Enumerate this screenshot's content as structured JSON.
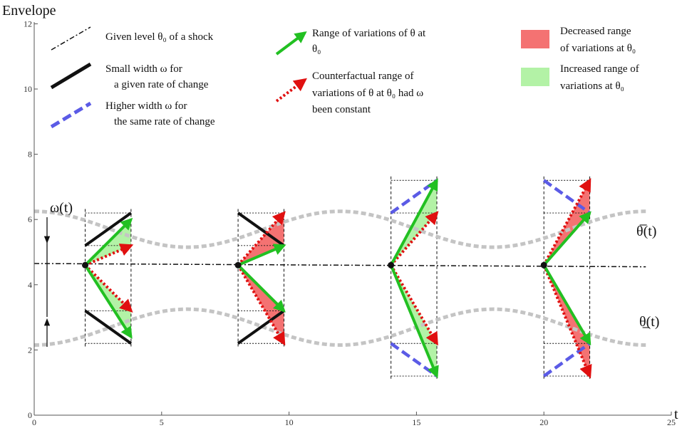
{
  "axes": {
    "ylabel": "Envelope",
    "xlabel": "t",
    "x_ticks": [
      "0",
      "5",
      "10",
      "15",
      "20",
      "25"
    ],
    "y_ticks": [
      "0",
      "2",
      "4",
      "6",
      "8",
      "10",
      "12"
    ],
    "xlim": [
      0,
      25
    ],
    "ylim": [
      0,
      12
    ]
  },
  "legend": {
    "given_level": "Given level θ₀ of a shock",
    "small_width": [
      "Small width ω for",
      "a given rate of change"
    ],
    "higher_width": [
      "Higher width ω for",
      "the same rate of change"
    ],
    "range": [
      "Range of variations of θ at",
      "θ₀"
    ],
    "counterfactual": [
      "Counterfactual range of",
      "variations of θ at θ₀ had ω",
      "been constant"
    ],
    "decreased": [
      "Decreased range",
      "of variations at θ₀"
    ],
    "increased": [
      "Increased range of",
      "variations at θ₀"
    ]
  },
  "curve_labels": {
    "omega": "ω(t)",
    "upper": "θ̅(t)",
    "lower": "θ̲(t)"
  },
  "colors": {
    "envelope": "#c4c4c4",
    "green": "#22c022",
    "red": "#e01010",
    "blue": "#5b5be6",
    "decreased_fill": "#f47272",
    "increased_fill": "#b3f2a6"
  },
  "chart_data": {
    "type": "line",
    "theta0": 4.6,
    "envelope": {
      "mid": 4.2,
      "halfwidth_mean": 1.5,
      "halfwidth_amp": 0.55,
      "period": 12,
      "x_range": [
        0,
        24
      ]
    },
    "shocks": [
      {
        "t0": 2,
        "t1": 3.8,
        "upper": [
          5.2,
          6.2
        ],
        "lower": [
          3.2,
          2.2
        ],
        "green_up": 6.0,
        "green_down": 2.4,
        "red_up": 5.2,
        "red_down": 3.2,
        "width_style": "small",
        "fill": "increased"
      },
      {
        "t0": 8,
        "t1": 9.8,
        "upper": [
          6.2,
          5.2
        ],
        "lower": [
          2.2,
          3.2
        ],
        "green_up": 5.2,
        "green_down": 3.2,
        "red_up": 6.2,
        "red_down": 2.2,
        "width_style": "small",
        "fill": "decreased"
      },
      {
        "t0": 14,
        "t1": 15.8,
        "upper": [
          6.2,
          7.2
        ],
        "lower": [
          2.2,
          1.2
        ],
        "green_up": 7.2,
        "green_down": 1.2,
        "red_up": 6.2,
        "red_down": 2.2,
        "width_style": "higher",
        "fill": "increased"
      },
      {
        "t0": 20,
        "t1": 21.8,
        "upper": [
          7.2,
          6.2
        ],
        "lower": [
          1.2,
          2.2
        ],
        "green_up": 6.2,
        "green_down": 2.2,
        "red_up": 7.2,
        "red_down": 1.2,
        "width_style": "higher",
        "fill": "decreased"
      }
    ]
  }
}
